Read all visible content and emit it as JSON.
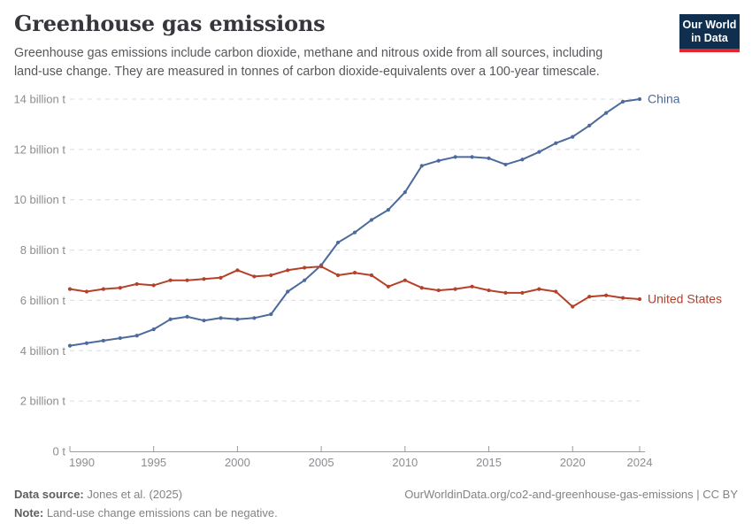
{
  "header": {
    "title": "Greenhouse gas emissions",
    "subtitle": "Greenhouse gas emissions include carbon dioxide, methane and nitrous oxide from all sources, including land-use change. They are measured in tonnes of carbon dioxide-equivalents over a 100-year timescale.",
    "logo": {
      "line1": "Our World",
      "line2": "in Data",
      "bg_color": "#102e4d",
      "accent_color": "#e2262c"
    }
  },
  "chart_data": {
    "type": "line",
    "title": "Greenhouse gas emissions",
    "xlabel": "",
    "ylabel": "",
    "unit": "billion t",
    "xlim": [
      1990,
      2024
    ],
    "ylim": [
      0,
      14
    ],
    "grid": "horizontal-dashed",
    "legend_position": "line-end-labels",
    "x": [
      1990,
      1991,
      1992,
      1993,
      1994,
      1995,
      1996,
      1997,
      1998,
      1999,
      2000,
      2001,
      2002,
      2003,
      2004,
      2005,
      2006,
      2007,
      2008,
      2009,
      2010,
      2011,
      2012,
      2013,
      2014,
      2015,
      2016,
      2017,
      2018,
      2019,
      2020,
      2021,
      2022,
      2023,
      2024
    ],
    "x_ticks": [
      1990,
      1995,
      2000,
      2005,
      2010,
      2015,
      2020,
      2024
    ],
    "y_ticks": [
      {
        "value": 0,
        "label": "0 t"
      },
      {
        "value": 2,
        "label": "2 billion t"
      },
      {
        "value": 4,
        "label": "4 billion t"
      },
      {
        "value": 6,
        "label": "6 billion t"
      },
      {
        "value": 8,
        "label": "8 billion t"
      },
      {
        "value": 10,
        "label": "10 billion t"
      },
      {
        "value": 12,
        "label": "12 billion t"
      },
      {
        "value": 14,
        "label": "14 billion t"
      }
    ],
    "series": [
      {
        "name": "China",
        "color": "#4c6a9c",
        "values": [
          4.2,
          4.3,
          4.4,
          4.5,
          4.6,
          4.85,
          5.25,
          5.35,
          5.2,
          5.3,
          5.25,
          5.3,
          5.45,
          6.35,
          6.8,
          7.4,
          8.3,
          8.7,
          9.2,
          9.6,
          10.3,
          11.35,
          11.55,
          11.7,
          11.7,
          11.65,
          11.4,
          11.6,
          11.9,
          12.25,
          12.5,
          12.95,
          13.45,
          13.9,
          14.0
        ]
      },
      {
        "name": "United States",
        "color": "#b5412a",
        "values": [
          6.45,
          6.35,
          6.45,
          6.5,
          6.65,
          6.6,
          6.8,
          6.8,
          6.85,
          6.9,
          7.2,
          6.95,
          7.0,
          7.2,
          7.3,
          7.35,
          7.0,
          7.1,
          7.0,
          6.55,
          6.8,
          6.5,
          6.4,
          6.45,
          6.55,
          6.4,
          6.3,
          6.3,
          6.45,
          6.35,
          5.75,
          6.15,
          6.2,
          6.1,
          6.05
        ]
      }
    ],
    "style": {
      "gridline_color": "#dcdcdc",
      "axis_color": "#9a9a9a",
      "tick_label_color": "#8b8d90"
    }
  },
  "footer": {
    "source_label": "Data source:",
    "source_value": " Jones et al. (2025)",
    "note_label": "Note:",
    "note_value": " Land-use change emissions can be negative.",
    "link": "OurWorldinData.org/co2-and-greenhouse-gas-emissions | CC BY"
  }
}
